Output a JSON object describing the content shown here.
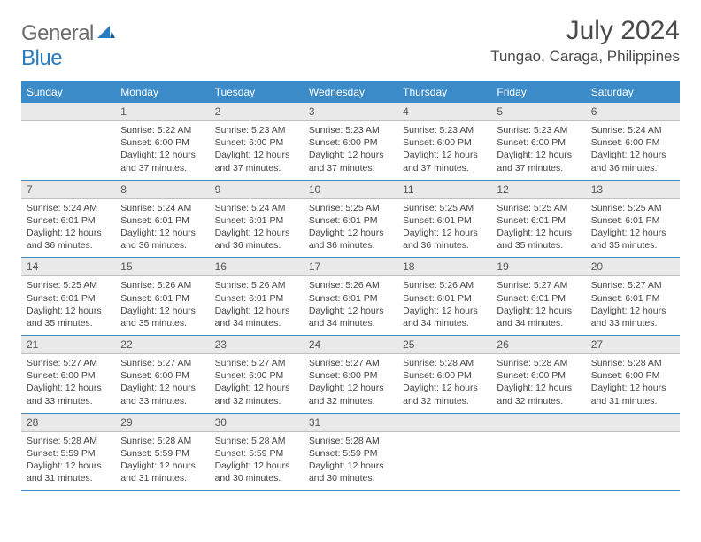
{
  "brand": {
    "general": "General",
    "blue": "Blue"
  },
  "title": "July 2024",
  "location": "Tungao, Caraga, Philippines",
  "headers": [
    "Sunday",
    "Monday",
    "Tuesday",
    "Wednesday",
    "Thursday",
    "Friday",
    "Saturday"
  ],
  "colors": {
    "header_bg": "#3b8bc9",
    "header_text": "#ffffff",
    "daynum_bg": "#e9e9e9",
    "row_border": "#3b8bc9",
    "brand_gray": "#6b6b6b",
    "brand_blue": "#2a7bbf"
  },
  "weeks": [
    [
      null,
      {
        "n": "1",
        "sr": "5:22 AM",
        "ss": "6:00 PM",
        "dl": "12 hours and 37 minutes."
      },
      {
        "n": "2",
        "sr": "5:23 AM",
        "ss": "6:00 PM",
        "dl": "12 hours and 37 minutes."
      },
      {
        "n": "3",
        "sr": "5:23 AM",
        "ss": "6:00 PM",
        "dl": "12 hours and 37 minutes."
      },
      {
        "n": "4",
        "sr": "5:23 AM",
        "ss": "6:00 PM",
        "dl": "12 hours and 37 minutes."
      },
      {
        "n": "5",
        "sr": "5:23 AM",
        "ss": "6:00 PM",
        "dl": "12 hours and 37 minutes."
      },
      {
        "n": "6",
        "sr": "5:24 AM",
        "ss": "6:00 PM",
        "dl": "12 hours and 36 minutes."
      }
    ],
    [
      {
        "n": "7",
        "sr": "5:24 AM",
        "ss": "6:01 PM",
        "dl": "12 hours and 36 minutes."
      },
      {
        "n": "8",
        "sr": "5:24 AM",
        "ss": "6:01 PM",
        "dl": "12 hours and 36 minutes."
      },
      {
        "n": "9",
        "sr": "5:24 AM",
        "ss": "6:01 PM",
        "dl": "12 hours and 36 minutes."
      },
      {
        "n": "10",
        "sr": "5:25 AM",
        "ss": "6:01 PM",
        "dl": "12 hours and 36 minutes."
      },
      {
        "n": "11",
        "sr": "5:25 AM",
        "ss": "6:01 PM",
        "dl": "12 hours and 36 minutes."
      },
      {
        "n": "12",
        "sr": "5:25 AM",
        "ss": "6:01 PM",
        "dl": "12 hours and 35 minutes."
      },
      {
        "n": "13",
        "sr": "5:25 AM",
        "ss": "6:01 PM",
        "dl": "12 hours and 35 minutes."
      }
    ],
    [
      {
        "n": "14",
        "sr": "5:25 AM",
        "ss": "6:01 PM",
        "dl": "12 hours and 35 minutes."
      },
      {
        "n": "15",
        "sr": "5:26 AM",
        "ss": "6:01 PM",
        "dl": "12 hours and 35 minutes."
      },
      {
        "n": "16",
        "sr": "5:26 AM",
        "ss": "6:01 PM",
        "dl": "12 hours and 34 minutes."
      },
      {
        "n": "17",
        "sr": "5:26 AM",
        "ss": "6:01 PM",
        "dl": "12 hours and 34 minutes."
      },
      {
        "n": "18",
        "sr": "5:26 AM",
        "ss": "6:01 PM",
        "dl": "12 hours and 34 minutes."
      },
      {
        "n": "19",
        "sr": "5:27 AM",
        "ss": "6:01 PM",
        "dl": "12 hours and 34 minutes."
      },
      {
        "n": "20",
        "sr": "5:27 AM",
        "ss": "6:01 PM",
        "dl": "12 hours and 33 minutes."
      }
    ],
    [
      {
        "n": "21",
        "sr": "5:27 AM",
        "ss": "6:00 PM",
        "dl": "12 hours and 33 minutes."
      },
      {
        "n": "22",
        "sr": "5:27 AM",
        "ss": "6:00 PM",
        "dl": "12 hours and 33 minutes."
      },
      {
        "n": "23",
        "sr": "5:27 AM",
        "ss": "6:00 PM",
        "dl": "12 hours and 32 minutes."
      },
      {
        "n": "24",
        "sr": "5:27 AM",
        "ss": "6:00 PM",
        "dl": "12 hours and 32 minutes."
      },
      {
        "n": "25",
        "sr": "5:28 AM",
        "ss": "6:00 PM",
        "dl": "12 hours and 32 minutes."
      },
      {
        "n": "26",
        "sr": "5:28 AM",
        "ss": "6:00 PM",
        "dl": "12 hours and 32 minutes."
      },
      {
        "n": "27",
        "sr": "5:28 AM",
        "ss": "6:00 PM",
        "dl": "12 hours and 31 minutes."
      }
    ],
    [
      {
        "n": "28",
        "sr": "5:28 AM",
        "ss": "5:59 PM",
        "dl": "12 hours and 31 minutes."
      },
      {
        "n": "29",
        "sr": "5:28 AM",
        "ss": "5:59 PM",
        "dl": "12 hours and 31 minutes."
      },
      {
        "n": "30",
        "sr": "5:28 AM",
        "ss": "5:59 PM",
        "dl": "12 hours and 30 minutes."
      },
      {
        "n": "31",
        "sr": "5:28 AM",
        "ss": "5:59 PM",
        "dl": "12 hours and 30 minutes."
      },
      null,
      null,
      null
    ]
  ],
  "labels": {
    "sunrise": "Sunrise:",
    "sunset": "Sunset:",
    "daylight": "Daylight:"
  }
}
